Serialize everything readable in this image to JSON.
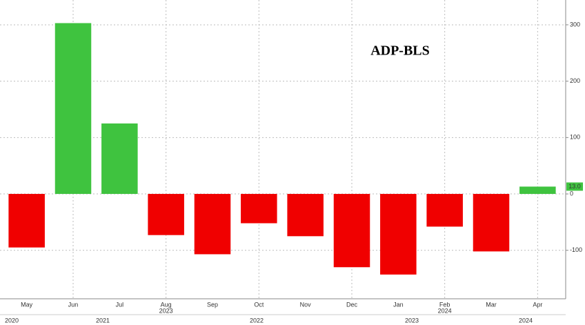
{
  "chart_data": {
    "type": "bar",
    "title": "ADP-BLS",
    "categories": [
      "May",
      "Jun",
      "Jul",
      "Aug",
      "Sep",
      "Oct",
      "Nov",
      "Dec",
      "Jan",
      "Feb",
      "Mar",
      "Apr"
    ],
    "values": [
      -95,
      303,
      125,
      -73,
      -107,
      -52,
      -75,
      -130,
      -143,
      -58,
      -102,
      13
    ],
    "value_labels": [
      null,
      null,
      null,
      null,
      null,
      null,
      null,
      null,
      null,
      null,
      null,
      "13.0"
    ],
    "positive_color": "#3fc33f",
    "negative_color": "#f00000",
    "ylim": [
      -186,
      344
    ],
    "yticks": [
      -100,
      0,
      100,
      200,
      300
    ],
    "grid": true,
    "year_labels_row1": [
      "2023",
      "2024"
    ],
    "year_labels_row2": [
      "2020",
      "2021",
      "2022",
      "2023",
      "2024"
    ]
  }
}
